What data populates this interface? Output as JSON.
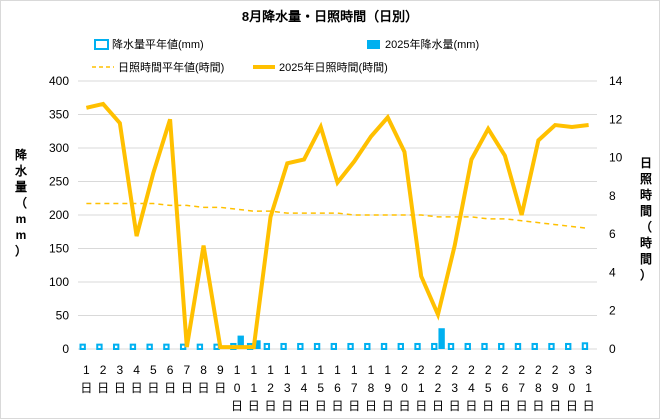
{
  "chart_data": {
    "type": "bar+line",
    "title": "8月降水量・日照時間（日別）",
    "y_left": {
      "label": "降水量（mm）",
      "ylim": [
        0,
        400
      ],
      "ticks": [
        0,
        50,
        100,
        150,
        200,
        250,
        300,
        350,
        400
      ]
    },
    "y_right": {
      "label": "日照時間（時間）",
      "ylim": [
        0,
        14
      ],
      "ticks": [
        0,
        2,
        4,
        6,
        8,
        10,
        12,
        14
      ]
    },
    "categories": [
      "1日",
      "2日",
      "3日",
      "4日",
      "5日",
      "6日",
      "7日",
      "8日",
      "9日",
      "10日",
      "11日",
      "12日",
      "13日",
      "14日",
      "15日",
      "16日",
      "17日",
      "18日",
      "19日",
      "20日",
      "21日",
      "22日",
      "23日",
      "24日",
      "25日",
      "26日",
      "27日",
      "28日",
      "29日",
      "30日",
      "31日"
    ],
    "grid": true,
    "legend_position": "top",
    "series": [
      {
        "name": "降水量平年値(mm)",
        "axis": "left",
        "style": "bar-outline",
        "color": "#00b0f0",
        "values": [
          8,
          8,
          8,
          8,
          8,
          8,
          8,
          8,
          8,
          9,
          9,
          9,
          9,
          9,
          9,
          9,
          9,
          9,
          9,
          9,
          9,
          9,
          9,
          9,
          9,
          9,
          9,
          9,
          9,
          9,
          10
        ]
      },
      {
        "name": "2025年降水量(mm)",
        "axis": "left",
        "style": "bar",
        "color": "#00b0f0",
        "values": [
          0,
          0,
          0,
          0,
          0,
          0,
          0,
          0,
          0,
          20,
          13,
          0,
          0,
          0,
          0,
          0,
          0,
          0,
          0,
          0,
          0,
          31,
          0,
          0,
          0,
          0,
          0,
          0,
          0,
          0,
          0
        ]
      },
      {
        "name": "日照時間平年値(時間)",
        "axis": "right",
        "style": "dashed-line",
        "color": "#ffc000",
        "values": [
          7.6,
          7.6,
          7.6,
          7.6,
          7.6,
          7.5,
          7.5,
          7.4,
          7.4,
          7.3,
          7.2,
          7.2,
          7.1,
          7.1,
          7.1,
          7.1,
          7.0,
          7.0,
          7.0,
          7.0,
          7.0,
          6.9,
          6.9,
          6.9,
          6.8,
          6.8,
          6.7,
          6.6,
          6.5,
          6.4,
          6.3
        ]
      },
      {
        "name": "2025年日照時間(時間)",
        "axis": "right",
        "style": "line",
        "color": "#ffc000",
        "values": [
          12.6,
          12.8,
          11.8,
          5.9,
          9.2,
          12.0,
          0.1,
          5.4,
          0.1,
          0.1,
          0.1,
          6.9,
          9.7,
          9.9,
          11.6,
          8.7,
          9.8,
          11.1,
          12.1,
          10.3,
          3.8,
          1.8,
          5.4,
          9.9,
          11.5,
          10.1,
          7.0,
          10.9,
          11.7,
          11.6,
          11.7
        ]
      }
    ]
  }
}
